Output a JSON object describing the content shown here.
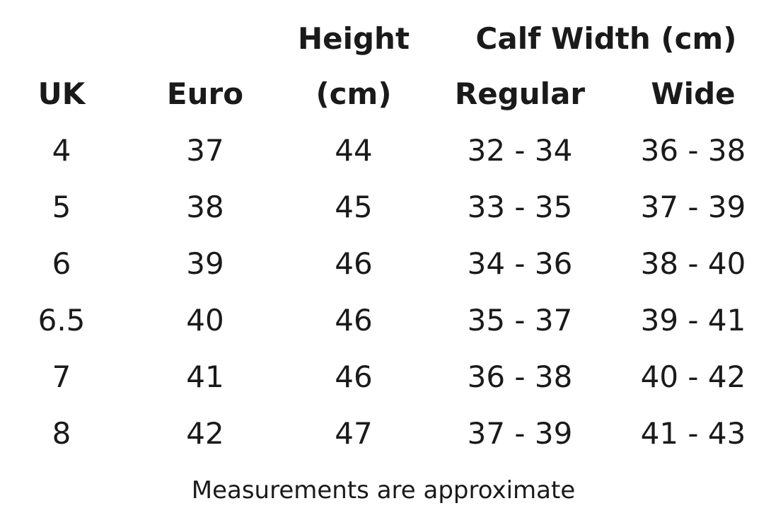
{
  "header": {
    "top": [
      "Height",
      "Calf Width (cm)"
    ],
    "columns": [
      "UK",
      "Euro",
      "(cm)",
      "Regular",
      "Wide"
    ]
  },
  "table": {
    "rows": [
      [
        "4",
        "37",
        "44",
        "32 - 34",
        "36 - 38"
      ],
      [
        "5",
        "38",
        "45",
        "33 - 35",
        "37 - 39"
      ],
      [
        "6",
        "39",
        "46",
        "34 - 36",
        "38 - 40"
      ],
      [
        "6.5",
        "40",
        "46",
        "35 - 37",
        "39 - 41"
      ],
      [
        "7",
        "41",
        "46",
        "36 - 38",
        "40 - 42"
      ],
      [
        "8",
        "42",
        "47",
        "37 - 39",
        "41 - 43"
      ]
    ]
  },
  "footer": {
    "note": "Measurements are approximate"
  }
}
